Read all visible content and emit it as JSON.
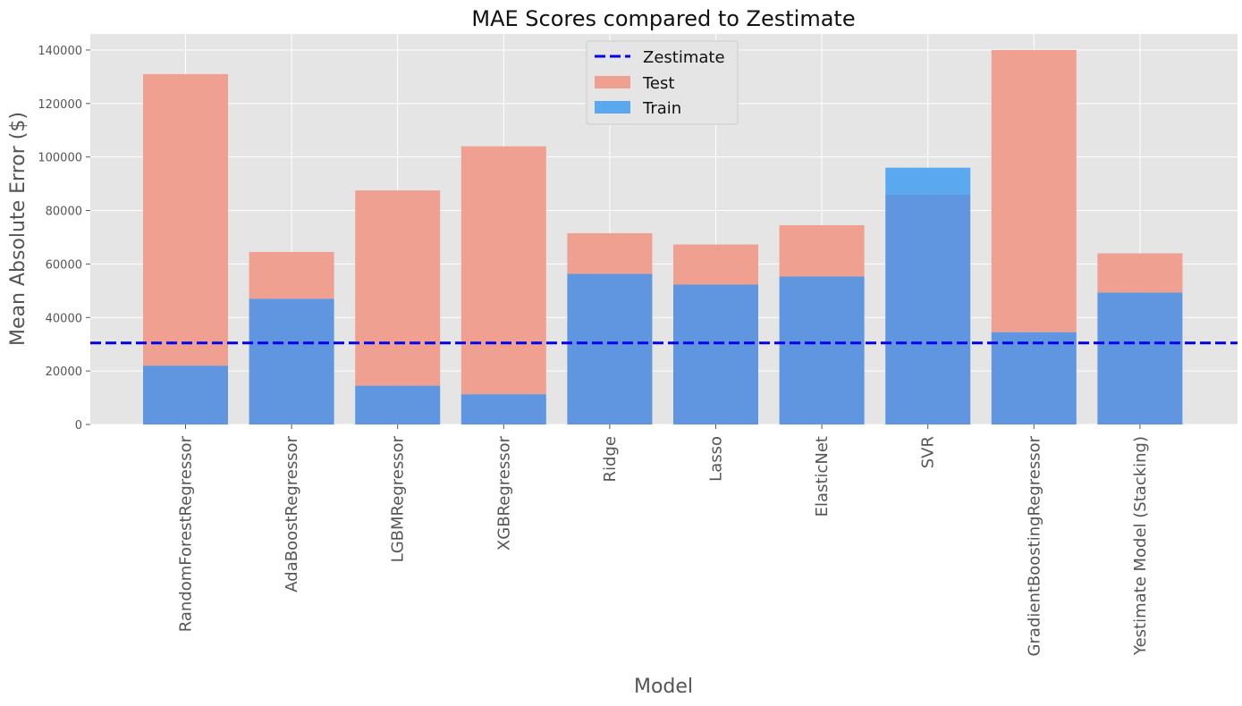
{
  "chart_data": {
    "type": "bar",
    "title": "MAE Scores compared to Zestimate",
    "xlabel": "Model",
    "ylabel": "Mean Absolute Error ($)",
    "ylim": [
      0,
      146000
    ],
    "yticks": [
      0,
      20000,
      40000,
      60000,
      80000,
      100000,
      120000,
      140000
    ],
    "grid": true,
    "legend_position": "top-center",
    "categories": [
      "RandomForestRegressor",
      "AdaBoostRegressor",
      "LGBMRegressor",
      "XGBRegressor",
      "Ridge",
      "Lasso",
      "ElasticNet",
      "SVR",
      "GradientBoostingRegressor",
      "Yestimate Model (Stacking)"
    ],
    "series": [
      {
        "name": "Test",
        "color": "#f0a090",
        "values": [
          131000,
          64500,
          87500,
          104000,
          71500,
          67300,
          74500,
          86000,
          140000,
          64000
        ]
      },
      {
        "name": "Train",
        "color": "#5aa9f0",
        "values": [
          22000,
          47000,
          14500,
          11300,
          56300,
          52300,
          55300,
          96000,
          34500,
          49300
        ]
      }
    ],
    "overlap_color": "#6096e0",
    "reference_lines": [
      {
        "name": "Zestimate",
        "value": 30500,
        "color": "#0000ee",
        "style": "dashed"
      }
    ]
  }
}
